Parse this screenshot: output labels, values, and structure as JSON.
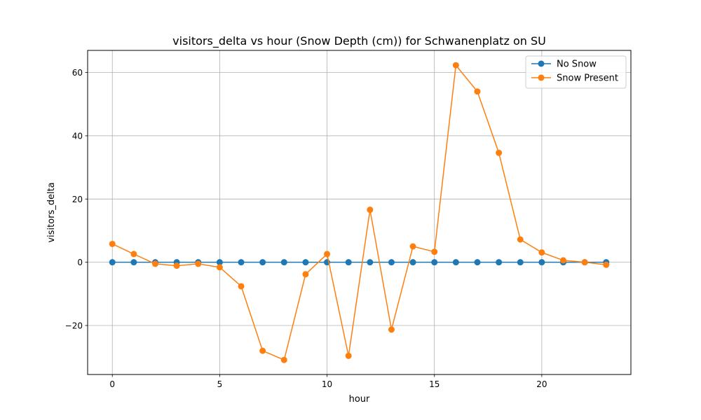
{
  "chart_data": {
    "type": "line",
    "title": "visitors_delta vs hour (Snow Depth (cm)) for Schwanenplatz on SU",
    "xlabel": "hour",
    "ylabel": "visitors_delta",
    "xlim": [
      -1.15,
      24.15
    ],
    "ylim": [
      -35.5,
      67
    ],
    "xticks": [
      0,
      5,
      10,
      15,
      20
    ],
    "xtick_labels": [
      "0",
      "5",
      "10",
      "15",
      "20"
    ],
    "yticks": [
      -20,
      0,
      20,
      40,
      60
    ],
    "ytick_labels": [
      "−20",
      "0",
      "20",
      "40",
      "60"
    ],
    "grid": true,
    "legend_position": "top-right",
    "x": [
      0,
      1,
      2,
      3,
      4,
      5,
      6,
      7,
      8,
      9,
      10,
      11,
      12,
      13,
      14,
      15,
      16,
      17,
      18,
      19,
      20,
      21,
      22,
      23
    ],
    "series": [
      {
        "name": "No Snow",
        "color": "#1f77b4",
        "values": [
          0,
          0,
          0,
          0,
          0,
          0,
          0,
          0,
          0,
          0,
          0,
          0,
          0,
          0,
          0,
          0,
          0,
          0,
          0,
          0,
          0,
          0,
          0,
          0
        ]
      },
      {
        "name": "Snow Present",
        "color": "#ff7f0e",
        "values": [
          5.8,
          2.6,
          -0.5,
          -1.1,
          -0.5,
          -1.6,
          -7.6,
          -28.0,
          -30.9,
          -3.8,
          2.6,
          -29.6,
          16.6,
          -21.3,
          5.0,
          3.3,
          62.3,
          54.0,
          34.6,
          7.2,
          3.1,
          0.6,
          0.0,
          -0.8
        ]
      }
    ]
  }
}
